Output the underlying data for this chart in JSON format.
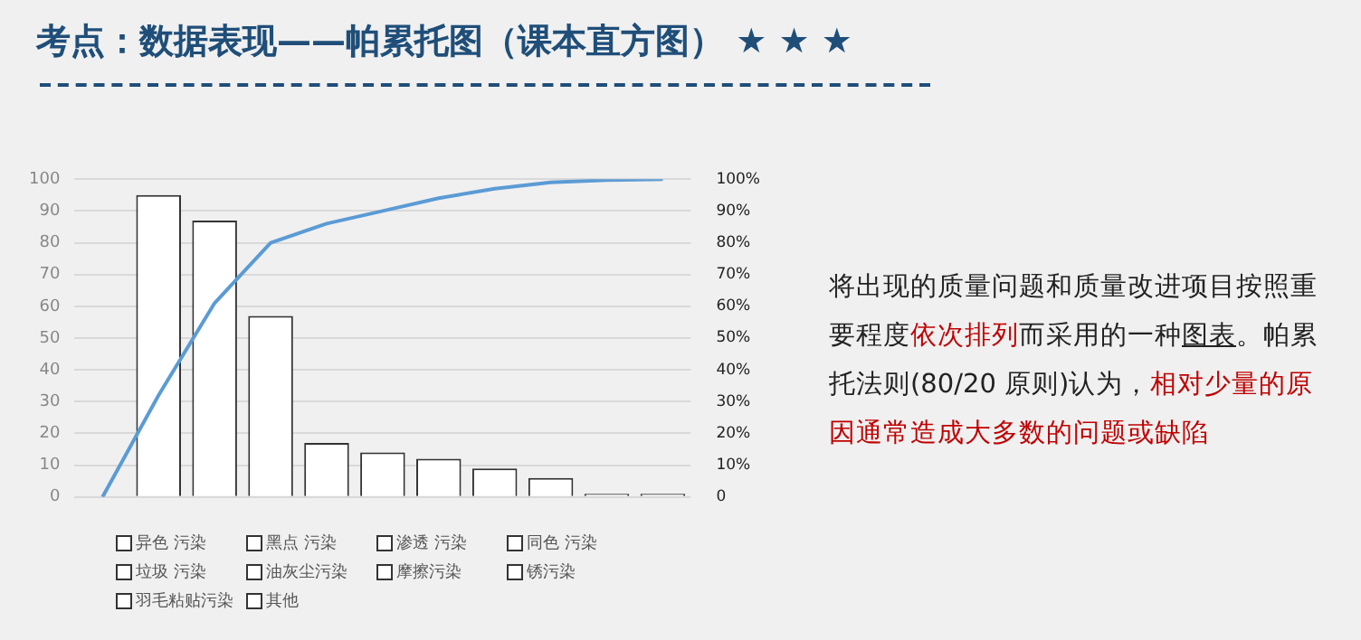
{
  "chart_data": {
    "type": "bar",
    "title": "考点：数据表现——帕累托图（课本直方图） ★ ★ ★",
    "categories": [
      null,
      null,
      null,
      null,
      null,
      null,
      null,
      null,
      null,
      null,
      null
    ],
    "series": [
      {
        "name": "异色 污染",
        "color": "#ffffff",
        "values": [
          null,
          95,
          null,
          null,
          null,
          null,
          null,
          null,
          null,
          null,
          null
        ]
      },
      {
        "name": "黑点 污染",
        "color": "#ffffff",
        "values": [
          null,
          null,
          87,
          null,
          null,
          null,
          null,
          null,
          null,
          null,
          null
        ]
      },
      {
        "name": "渗透 污染",
        "color": "#ffffff",
        "values": [
          null,
          null,
          null,
          57,
          null,
          null,
          null,
          null,
          null,
          null,
          null
        ]
      },
      {
        "name": "同色 污染",
        "color": "#ffffff",
        "values": [
          null,
          null,
          null,
          null,
          17,
          null,
          null,
          null,
          null,
          null,
          null
        ]
      },
      {
        "name": "垃圾 污染",
        "color": "#ffffff",
        "values": [
          null,
          null,
          null,
          null,
          null,
          14,
          null,
          null,
          null,
          null,
          null
        ]
      },
      {
        "name": "油灰尘污染",
        "color": "#ffffff",
        "values": [
          null,
          null,
          null,
          null,
          null,
          null,
          12,
          null,
          null,
          null,
          null
        ]
      },
      {
        "name": "摩擦污染",
        "color": "#ffffff",
        "values": [
          null,
          null,
          null,
          null,
          null,
          null,
          null,
          9,
          null,
          null,
          null
        ]
      },
      {
        "name": "锈污染",
        "color": "#ffffff",
        "values": [
          null,
          null,
          null,
          null,
          null,
          null,
          null,
          null,
          6,
          null,
          null
        ]
      },
      {
        "name": "羽毛粘贴污染",
        "color": "#ffffff",
        "values": [
          null,
          null,
          null,
          null,
          null,
          null,
          null,
          null,
          null,
          1,
          null
        ]
      },
      {
        "name": "其他",
        "color": "#ffffff",
        "values": [
          null,
          null,
          null,
          null,
          null,
          null,
          null,
          null,
          null,
          null,
          1
        ]
      },
      {
        "type": "line",
        "axis": "y2",
        "color": "#5b9bd5",
        "values": [
          0,
          32,
          61,
          80,
          86,
          90,
          94,
          97,
          99,
          99.7,
          100
        ]
      }
    ],
    "ylim": [
      0,
      100
    ],
    "yticks": [
      0,
      10,
      20,
      30,
      40,
      50,
      60,
      70,
      80,
      90,
      100
    ],
    "y2lim": [
      0,
      100
    ],
    "y2ticks": [
      0,
      {
        "value": 10,
        "label": "10%"
      },
      {
        "value": 20,
        "label": "20%"
      },
      {
        "value": 30,
        "label": "30%"
      },
      {
        "value": 40,
        "label": "40%"
      },
      {
        "value": 50,
        "label": "50%"
      },
      {
        "value": 60,
        "label": "60%"
      },
      {
        "value": 70,
        "label": "70%"
      },
      {
        "value": 80,
        "label": "80%"
      },
      {
        "value": 90,
        "label": "90%"
      },
      {
        "value": 100,
        "label": "100%"
      }
    ],
    "grid": "y",
    "legend": "bottom",
    "marker": "none",
    "tick_labels": "y",
    "annotations": [
      "将出现的质量问题和质量改进项目按照重要程度",
      "依次排列",
      "而采用的一种",
      "图表",
      "。帕累托法则(80/20 原则)认为，",
      "相对少量的原因通常造成大多数的问题或缺陷"
    ]
  }
}
